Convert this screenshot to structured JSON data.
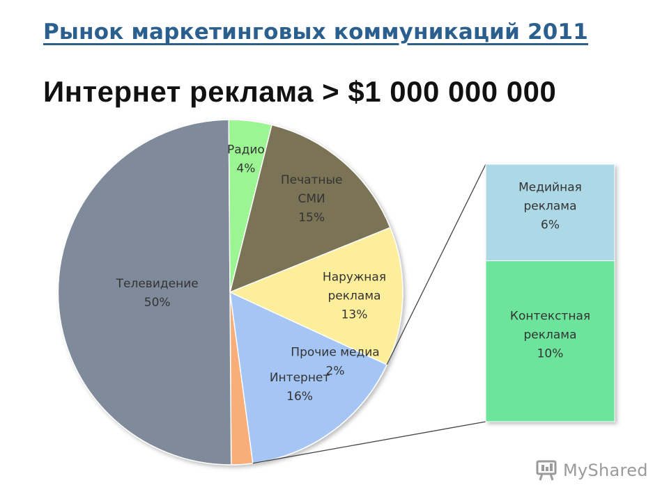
{
  "slide": {
    "title": "Рынок маркетинговых коммуникаций 2011",
    "subtitle": "Интернет реклама > $1 000 000 000"
  },
  "watermark": {
    "text": "MyShared",
    "icon": "myshared-logo-icon"
  },
  "chart_data": [
    {
      "type": "pie",
      "title": "",
      "slices": [
        {
          "name": "Печатные СМИ",
          "label_lines": [
            "Печатные",
            "СМИ"
          ],
          "value": 15,
          "value_label": "15%",
          "color": "#7a7356"
        },
        {
          "name": "Наружная реклама",
          "label_lines": [
            "Наружная",
            "реклама"
          ],
          "value": 13,
          "value_label": "13%",
          "color": "#fcee9b"
        },
        {
          "name": "Интернет",
          "label_lines": [
            "Интернет"
          ],
          "value": 16,
          "value_label": "16%",
          "color": "#a5c6f4"
        },
        {
          "name": "Прочие медиа",
          "label_lines": [
            "Прочие медиа"
          ],
          "value": 2,
          "value_label": "2%",
          "color": "#f8ae78"
        },
        {
          "name": "Телевидение",
          "label_lines": [
            "Телевидение"
          ],
          "value": 50,
          "value_label": "50%",
          "color": "#7f8b9b"
        },
        {
          "name": "Радио",
          "label_lines": [
            "Радио"
          ],
          "value": 4,
          "value_label": "4%",
          "color": "#9af592"
        }
      ],
      "start_angle_deg": 14,
      "direction": "clockwise"
    },
    {
      "type": "bar",
      "stacked": true,
      "breakdown_of": "Интернет",
      "segments": [
        {
          "name": "Медийная реклама",
          "label_lines": [
            "Медийная",
            "реклама"
          ],
          "value": 6,
          "value_label": "6%",
          "color": "#add8e6"
        },
        {
          "name": "Контекстная реклама",
          "label_lines": [
            "Контекстная",
            "реклама"
          ],
          "value": 10,
          "value_label": "10%",
          "color": "#6ce49b"
        }
      ]
    }
  ]
}
